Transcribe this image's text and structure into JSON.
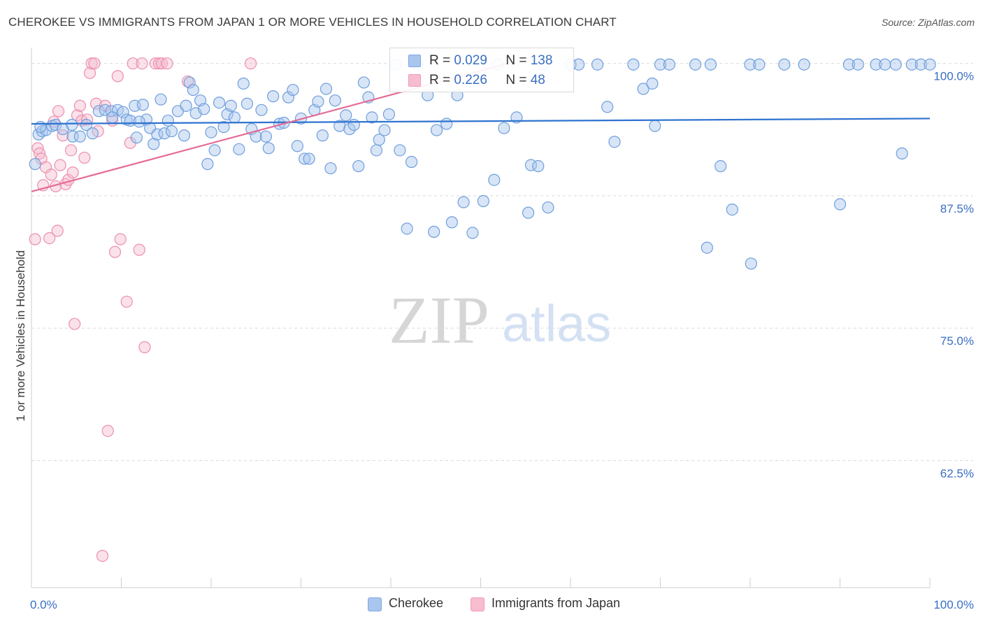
{
  "title": "CHEROKEE VS IMMIGRANTS FROM JAPAN 1 OR MORE VEHICLES IN HOUSEHOLD CORRELATION CHART",
  "source": "Source: ZipAtlas.com",
  "watermark": {
    "zip": "ZIP",
    "atlas": "atlas"
  },
  "stats": [
    {
      "r_label": "R =",
      "r_value": "0.029",
      "n_label": "N =",
      "n_value": "138",
      "color": "#7fa7e0"
    },
    {
      "r_label": "R =",
      "r_value": "0.226",
      "n_label": "N =",
      "n_value": "48",
      "color": "#f09ab5"
    }
  ],
  "legend": [
    {
      "label": "Cherokee",
      "color": "#a9c6ee"
    },
    {
      "label": "Immigrants from Japan",
      "color": "#f7bdcf"
    }
  ],
  "colors": {
    "cherokee_fill": "#a9c6ee",
    "cherokee_stroke": "#6f9fdc",
    "cherokee_line": "#2f73d0",
    "japan_fill": "#f7bdcf",
    "japan_stroke": "#eb8faf",
    "japan_line": "#e56b96",
    "tick_label": "#3a6fc4",
    "grid": "#d9d9d9"
  },
  "chart_data": {
    "type": "scatter",
    "title": "CHEROKEE VS IMMIGRANTS FROM JAPAN 1 OR MORE VEHICLES IN HOUSEHOLD CORRELATION CHART",
    "xlabel": "",
    "ylabel": "1 or more Vehicles in Household",
    "xlim": [
      0,
      100
    ],
    "ylim": [
      50.5,
      101.5
    ],
    "x_tick_labels": [
      {
        "value": 0,
        "label": "0.0%"
      },
      {
        "value": 100,
        "label": "100.0%"
      }
    ],
    "y_ticks": [
      {
        "value": 100,
        "label": "100.0%"
      },
      {
        "value": 87.5,
        "label": "87.5%"
      },
      {
        "value": 75,
        "label": "75.0%"
      },
      {
        "value": 62.5,
        "label": "62.5%"
      }
    ],
    "series": [
      {
        "name": "Cherokee",
        "trend": {
          "x": [
            0,
            100
          ],
          "y": [
            94.3,
            94.8
          ]
        },
        "points": [
          [
            0.4,
            90.5
          ],
          [
            0.8,
            93.3
          ],
          [
            1.2,
            93.6
          ],
          [
            1.6,
            93.7
          ],
          [
            2.3,
            94.1
          ],
          [
            2.7,
            94.2
          ],
          [
            3.5,
            93.8
          ],
          [
            4.5,
            94.2
          ],
          [
            4.6,
            93.1
          ],
          [
            5.4,
            93.1
          ],
          [
            6.1,
            94.2
          ],
          [
            6.8,
            93.4
          ],
          [
            7.5,
            95.5
          ],
          [
            8.2,
            95.6
          ],
          [
            8.9,
            95.5
          ],
          [
            9.6,
            95.6
          ],
          [
            10.2,
            95.4
          ],
          [
            10.6,
            94.7
          ],
          [
            11.0,
            94.6
          ],
          [
            11.5,
            96.0
          ],
          [
            11.7,
            93.0
          ],
          [
            12.4,
            96.1
          ],
          [
            12.8,
            94.7
          ],
          [
            13.2,
            93.9
          ],
          [
            13.6,
            92.4
          ],
          [
            14.0,
            93.3
          ],
          [
            14.4,
            96.6
          ],
          [
            14.8,
            93.4
          ],
          [
            15.2,
            94.6
          ],
          [
            15.6,
            93.6
          ],
          [
            16.3,
            95.5
          ],
          [
            17.0,
            93.2
          ],
          [
            17.2,
            96.0
          ],
          [
            17.6,
            98.2
          ],
          [
            18.0,
            97.5
          ],
          [
            18.3,
            95.3
          ],
          [
            18.8,
            96.5
          ],
          [
            19.2,
            95.7
          ],
          [
            19.6,
            90.5
          ],
          [
            20.0,
            93.5
          ],
          [
            20.4,
            91.8
          ],
          [
            20.9,
            96.3
          ],
          [
            21.4,
            94.0
          ],
          [
            21.8,
            95.2
          ],
          [
            22.2,
            96.0
          ],
          [
            22.6,
            94.9
          ],
          [
            23.1,
            91.9
          ],
          [
            23.6,
            98.1
          ],
          [
            24.0,
            96.2
          ],
          [
            24.5,
            93.8
          ],
          [
            25.0,
            93.1
          ],
          [
            25.6,
            95.6
          ],
          [
            26.1,
            93.1
          ],
          [
            26.4,
            92.0
          ],
          [
            26.9,
            96.9
          ],
          [
            27.6,
            94.3
          ],
          [
            28.1,
            94.4
          ],
          [
            28.6,
            96.8
          ],
          [
            29.1,
            97.5
          ],
          [
            29.6,
            92.2
          ],
          [
            30.0,
            94.8
          ],
          [
            30.4,
            91.0
          ],
          [
            30.9,
            91.0
          ],
          [
            31.5,
            95.6
          ],
          [
            31.9,
            96.4
          ],
          [
            32.4,
            93.2
          ],
          [
            32.8,
            97.6
          ],
          [
            33.3,
            90.1
          ],
          [
            33.8,
            96.5
          ],
          [
            34.3,
            94.1
          ],
          [
            35.0,
            95.1
          ],
          [
            35.4,
            93.8
          ],
          [
            35.9,
            94.2
          ],
          [
            36.4,
            90.3
          ],
          [
            37.0,
            98.2
          ],
          [
            37.5,
            96.8
          ],
          [
            37.9,
            94.9
          ],
          [
            38.4,
            91.8
          ],
          [
            38.7,
            92.8
          ],
          [
            39.3,
            93.7
          ],
          [
            39.8,
            95.2
          ],
          [
            40.5,
            99.9
          ],
          [
            41.0,
            91.8
          ],
          [
            41.8,
            84.4
          ],
          [
            42.3,
            90.7
          ],
          [
            43.0,
            99.9
          ],
          [
            44.1,
            97.0
          ],
          [
            44.8,
            84.1
          ],
          [
            45.1,
            93.7
          ],
          [
            46.2,
            94.3
          ],
          [
            46.8,
            85.0
          ],
          [
            47.4,
            97.0
          ],
          [
            48.1,
            86.9
          ],
          [
            49.1,
            84.0
          ],
          [
            50.3,
            87.0
          ],
          [
            51.5,
            89.0
          ],
          [
            51.9,
            99.9
          ],
          [
            52.6,
            93.9
          ],
          [
            54.0,
            94.9
          ],
          [
            55.3,
            85.9
          ],
          [
            55.6,
            90.4
          ],
          [
            56.4,
            90.3
          ],
          [
            57.0,
            99.9
          ],
          [
            57.5,
            86.4
          ],
          [
            60.0,
            99.9
          ],
          [
            60.9,
            99.9
          ],
          [
            63.0,
            99.9
          ],
          [
            64.1,
            95.9
          ],
          [
            64.9,
            92.6
          ],
          [
            67.0,
            99.9
          ],
          [
            68.1,
            97.6
          ],
          [
            69.1,
            98.1
          ],
          [
            69.4,
            94.1
          ],
          [
            70.0,
            99.9
          ],
          [
            71.0,
            99.9
          ],
          [
            73.9,
            99.9
          ],
          [
            75.2,
            82.6
          ],
          [
            75.6,
            99.9
          ],
          [
            76.7,
            90.3
          ],
          [
            78.0,
            86.2
          ],
          [
            80.0,
            99.9
          ],
          [
            80.1,
            81.1
          ],
          [
            81.0,
            99.9
          ],
          [
            83.8,
            99.9
          ],
          [
            86.0,
            99.9
          ],
          [
            90.0,
            86.7
          ],
          [
            91.0,
            99.9
          ],
          [
            92.0,
            99.9
          ],
          [
            94.0,
            99.9
          ],
          [
            95.0,
            99.9
          ],
          [
            96.2,
            99.9
          ],
          [
            96.9,
            91.5
          ],
          [
            98.0,
            99.9
          ],
          [
            99.0,
            99.9
          ],
          [
            100.0,
            99.9
          ],
          [
            1.0,
            94.0
          ],
          [
            9.0,
            94.9
          ],
          [
            12.0,
            94.5
          ]
        ]
      },
      {
        "name": "Immigrants from Japan",
        "trend": {
          "x": [
            0,
            53
          ],
          "y": [
            87.9,
            100.0
          ]
        },
        "points": [
          [
            0.4,
            83.4
          ],
          [
            0.7,
            92.0
          ],
          [
            0.9,
            91.5
          ],
          [
            1.1,
            91.0
          ],
          [
            1.3,
            88.5
          ],
          [
            1.6,
            90.2
          ],
          [
            2.0,
            83.5
          ],
          [
            2.2,
            89.5
          ],
          [
            2.5,
            94.5
          ],
          [
            2.7,
            88.4
          ],
          [
            2.9,
            84.2
          ],
          [
            3.0,
            95.5
          ],
          [
            3.2,
            90.4
          ],
          [
            3.5,
            93.2
          ],
          [
            3.8,
            88.6
          ],
          [
            4.1,
            89.0
          ],
          [
            4.4,
            91.8
          ],
          [
            4.6,
            89.7
          ],
          [
            4.8,
            75.4
          ],
          [
            5.1,
            95.1
          ],
          [
            5.4,
            96.0
          ],
          [
            5.6,
            94.6
          ],
          [
            5.9,
            91.1
          ],
          [
            6.2,
            94.7
          ],
          [
            6.5,
            99.1
          ],
          [
            6.7,
            100.0
          ],
          [
            7.0,
            100.0
          ],
          [
            7.2,
            96.2
          ],
          [
            7.4,
            93.6
          ],
          [
            7.9,
            53.5
          ],
          [
            8.2,
            96.0
          ],
          [
            8.5,
            65.3
          ],
          [
            9.0,
            94.6
          ],
          [
            9.3,
            82.2
          ],
          [
            9.6,
            98.8
          ],
          [
            9.9,
            83.4
          ],
          [
            10.6,
            77.5
          ],
          [
            11.0,
            92.5
          ],
          [
            11.3,
            100.0
          ],
          [
            12.0,
            82.4
          ],
          [
            12.3,
            100.0
          ],
          [
            12.6,
            73.2
          ],
          [
            13.8,
            100.0
          ],
          [
            14.2,
            100.0
          ],
          [
            14.5,
            100.0
          ],
          [
            15.1,
            100.0
          ],
          [
            17.4,
            98.3
          ],
          [
            24.4,
            100.0
          ]
        ]
      }
    ]
  }
}
